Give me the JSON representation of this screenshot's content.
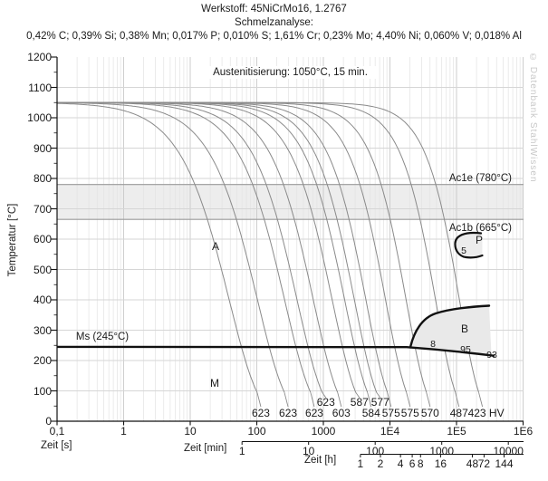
{
  "header": {
    "line1": "Werkstoff: 45NiCrMo16, 1.2767",
    "line2": "Schmelzanalyse:",
    "line3": "0,42% C; 0,39% Si; 0,38% Mn; 0,017% P; 0,010% S; 1,61% Cr; 0,23% Mo; 4,40% Ni; 0,060% V; 0,018% Al"
  },
  "watermark": "© Datenbank StahlWissen",
  "chart_data": {
    "type": "line",
    "title": "Werkstoff: 45NiCrMo16, 1.2767",
    "subtitle": "Schmelzanalyse: 0,42% C; 0,39% Si; 0,38% Mn; 0,017% P; 0,010% S; 1,61% Cr; 0,23% Mo; 4,40% Ni; 0,060% V; 0,018% Al",
    "annotation": "Austenitisierung: 1050°C, 15 min.",
    "austenitization_temp_c": 1050,
    "ylabel": "Temperatur [°C]",
    "ylim": [
      0,
      1200
    ],
    "ytick_step": 100,
    "ytick_labels": [
      "0",
      "100",
      "200",
      "300",
      "400",
      "500",
      "600",
      "700",
      "800",
      "900",
      "1000",
      "1100",
      "1200"
    ],
    "xscale": "log",
    "x_axes": [
      {
        "name": "seconds",
        "label": "Zeit [s]",
        "tick_labels": [
          "0,1",
          "1",
          "10",
          "100",
          "1000",
          "1E4",
          "1E5",
          "1E6"
        ],
        "tick_values_s": [
          0.1,
          1,
          10,
          100,
          1000,
          10000,
          100000,
          1000000
        ]
      },
      {
        "name": "minutes",
        "label": "Zeit [min]",
        "tick_labels": [
          "1",
          "10",
          "100",
          "1000",
          "10000"
        ],
        "tick_values_min": [
          1,
          10,
          100,
          1000,
          10000
        ]
      },
      {
        "name": "hours",
        "label": "Zeit [h]",
        "tick_labels": [
          "1",
          "2",
          "4",
          "6",
          "8",
          "16",
          "48",
          "72",
          "144"
        ],
        "tick_values_h": [
          1,
          2,
          4,
          6,
          8,
          16,
          48,
          72,
          144
        ]
      }
    ],
    "reference_lines": [
      {
        "name": "Ac1e",
        "label": "Ac1e (780°C)",
        "temp_c": 780
      },
      {
        "name": "Ac1b",
        "label": "Ac1b (665°C)",
        "temp_c": 665
      },
      {
        "name": "Ms",
        "label": "Ms (245°C)",
        "temp_c": 245
      }
    ],
    "zone_labels": {
      "austenite": "A",
      "martensite": "M",
      "bainite": "B",
      "pearlite": "P",
      "pearlite_pct": "5",
      "bainite_pct_left": "8",
      "bainite_pct_mid": "95",
      "bainite_pct_right": "93"
    },
    "hardness_unit": "HV",
    "cooling_curves": [
      {
        "hardness": "623",
        "end_time_s": 115,
        "label_row": "lower"
      },
      {
        "hardness": "623",
        "end_time_s": 295,
        "label_row": "lower"
      },
      {
        "hardness": "623",
        "end_time_s": 730,
        "label_row": "lower"
      },
      {
        "hardness": "623",
        "end_time_s": 1090,
        "label_row": "upper"
      },
      {
        "hardness": "603",
        "end_time_s": 1860,
        "label_row": "lower"
      },
      {
        "hardness": "587",
        "end_time_s": 3480,
        "label_row": "upper"
      },
      {
        "hardness": "584",
        "end_time_s": 5220,
        "label_row": "lower"
      },
      {
        "hardness": "577",
        "end_time_s": 7140,
        "label_row": "upper"
      },
      {
        "hardness": "575",
        "end_time_s": 10400,
        "label_row": "lower"
      },
      {
        "hardness": "575",
        "end_time_s": 20100,
        "label_row": "lower"
      },
      {
        "hardness": "570",
        "end_time_s": 40100,
        "label_row": "lower"
      },
      {
        "hardness": "487",
        "end_time_s": 109000,
        "label_row": "lower"
      },
      {
        "hardness": "423 HV",
        "end_time_s": 245000,
        "label_row": "lower"
      }
    ],
    "colors": {
      "curve": "#8a8a8a",
      "grid_major": "#c9c9c9",
      "grid_minor": "#e3e3e3",
      "band_fill": "#ededed",
      "band_line": "#9a9a9a",
      "thick_line": "#111111",
      "text": "#1a1a1a",
      "watermark": "#c8c8c8"
    }
  }
}
